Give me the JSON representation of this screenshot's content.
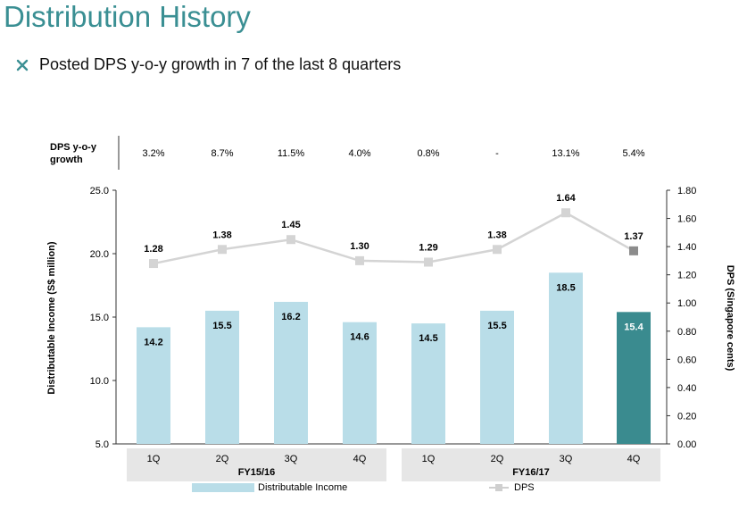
{
  "header": {
    "title": "Distribution History",
    "bullet": "Posted DPS y-o-y growth in 7 of the last 8 quarters"
  },
  "growth_table": {
    "header_line1": "DPS y-o-y",
    "header_line2": "growth",
    "values": [
      "3.2%",
      "8.7%",
      "11.5%",
      "4.0%",
      "0.8%",
      "-",
      "13.1%",
      "5.4%"
    ]
  },
  "colors": {
    "title": "#3a8f93",
    "bar": "#b9dde8",
    "bar_highlight": "#3a8b8f",
    "line": "#d4d4d4",
    "marker_highlight": "#8c8c8c",
    "group_band": "#e6e6e6"
  },
  "chart_data": {
    "type": "bar+line",
    "categories": [
      "1Q",
      "2Q",
      "3Q",
      "4Q",
      "1Q",
      "2Q",
      "3Q",
      "4Q"
    ],
    "groups": [
      {
        "label": "FY15/16",
        "start": 0,
        "end": 3
      },
      {
        "label": "FY16/17",
        "start": 4,
        "end": 7
      }
    ],
    "series": [
      {
        "name": "Distributable Income",
        "type": "bar",
        "axis": "left",
        "values": [
          14.2,
          15.5,
          16.2,
          14.6,
          14.5,
          15.5,
          18.5,
          15.4
        ],
        "labels": [
          "14.2",
          "15.5",
          "16.2",
          "14.6",
          "14.5",
          "15.5",
          "18.5",
          "15.4"
        ],
        "highlight_index": 7
      },
      {
        "name": "DPS",
        "type": "line",
        "axis": "right",
        "values": [
          1.28,
          1.38,
          1.45,
          1.3,
          1.29,
          1.38,
          1.64,
          1.37
        ],
        "labels": [
          "1.28",
          "1.38",
          "1.45",
          "1.30",
          "1.29",
          "1.38",
          "1.64",
          "1.37"
        ],
        "highlight_index": 7
      }
    ],
    "y_left": {
      "label": "Distributable Income (S$ million)",
      "range": [
        5.0,
        25.0
      ],
      "ticks": [
        5.0,
        10.0,
        15.0,
        20.0,
        25.0
      ],
      "tick_labels": [
        "5.0",
        "10.0",
        "15.0",
        "20.0",
        "25.0"
      ]
    },
    "y_right": {
      "label": "DPS (Singapore cents)",
      "range": [
        0.0,
        1.8
      ],
      "ticks": [
        0.0,
        0.2,
        0.4,
        0.6,
        0.8,
        1.0,
        1.2,
        1.4,
        1.6,
        1.8
      ],
      "tick_labels": [
        "0.00",
        "0.20",
        "0.40",
        "0.60",
        "0.80",
        "1.00",
        "1.20",
        "1.40",
        "1.60",
        "1.80"
      ]
    },
    "legend": {
      "position": "bottom",
      "bar_label": "Distributable Income",
      "line_label": "DPS"
    },
    "grid": false
  }
}
